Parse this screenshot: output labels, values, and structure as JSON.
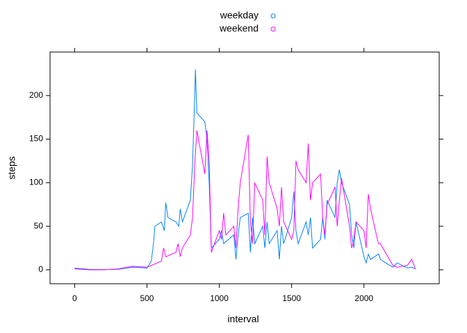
{
  "chart_data": {
    "type": "line",
    "xlabel": "interval",
    "ylabel": "steps",
    "xlim": [
      -170,
      2520
    ],
    "ylim": [
      -16,
      250
    ],
    "xticks": [
      0,
      500,
      1000,
      1500,
      2000
    ],
    "yticks": [
      0,
      50,
      100,
      150,
      200
    ],
    "series": [
      {
        "name": "weekday",
        "color": "#0080ff",
        "x": [
          0,
          100,
          200,
          300,
          400,
          500,
          530,
          545,
          555,
          600,
          620,
          630,
          645,
          700,
          720,
          730,
          745,
          800,
          815,
          830,
          835,
          845,
          900,
          915,
          930,
          945,
          1000,
          1015,
          1030,
          1100,
          1115,
          1130,
          1145,
          1200,
          1215,
          1230,
          1245,
          1300,
          1315,
          1330,
          1345,
          1400,
          1415,
          1430,
          1445,
          1500,
          1515,
          1530,
          1545,
          1600,
          1615,
          1630,
          1645,
          1700,
          1715,
          1730,
          1745,
          1800,
          1815,
          1830,
          1845,
          1900,
          1915,
          1930,
          1945,
          2000,
          2015,
          2030,
          2045,
          2100,
          2115,
          2130,
          2200,
          2230,
          2300,
          2330,
          2355
        ],
        "values": [
          2,
          0.5,
          0.2,
          0.5,
          3,
          2,
          10,
          30,
          50,
          55,
          45,
          77,
          60,
          55,
          50,
          70,
          55,
          80,
          120,
          200,
          230,
          180,
          170,
          150,
          100,
          25,
          35,
          45,
          30,
          40,
          12,
          40,
          60,
          65,
          20,
          60,
          30,
          50,
          25,
          55,
          30,
          45,
          12,
          50,
          30,
          60,
          90,
          45,
          30,
          55,
          40,
          60,
          25,
          35,
          60,
          35,
          80,
          60,
          100,
          115,
          100,
          75,
          40,
          25,
          55,
          15,
          8,
          18,
          12,
          18,
          12,
          10,
          3,
          8,
          2,
          3,
          1
        ]
      },
      {
        "name": "weekend",
        "color": "#ff00ff",
        "x": [
          0,
          100,
          200,
          300,
          400,
          500,
          530,
          600,
          615,
          630,
          700,
          715,
          730,
          745,
          800,
          815,
          830,
          845,
          900,
          915,
          930,
          945,
          1000,
          1015,
          1030,
          1045,
          1100,
          1115,
          1130,
          1145,
          1200,
          1215,
          1230,
          1245,
          1300,
          1315,
          1330,
          1345,
          1400,
          1415,
          1430,
          1445,
          1500,
          1515,
          1530,
          1545,
          1600,
          1615,
          1630,
          1645,
          1700,
          1715,
          1730,
          1745,
          1800,
          1815,
          1830,
          1845,
          1900,
          1915,
          1930,
          1945,
          2000,
          2015,
          2030,
          2045,
          2100,
          2115,
          2130,
          2200,
          2230,
          2300,
          2330,
          2355
        ],
        "values": [
          1,
          0,
          0,
          1,
          4,
          3,
          5,
          10,
          25,
          15,
          20,
          30,
          15,
          25,
          40,
          60,
          120,
          160,
          110,
          160,
          125,
          20,
          45,
          35,
          65,
          40,
          50,
          25,
          70,
          100,
          155,
          55,
          30,
          100,
          80,
          40,
          130,
          100,
          70,
          50,
          95,
          55,
          35,
          45,
          125,
          115,
          100,
          145,
          80,
          100,
          110,
          60,
          40,
          75,
          95,
          50,
          80,
          105,
          50,
          25,
          35,
          55,
          45,
          25,
          87,
          70,
          30,
          30,
          25,
          5,
          3,
          5,
          12,
          1
        ]
      }
    ]
  }
}
